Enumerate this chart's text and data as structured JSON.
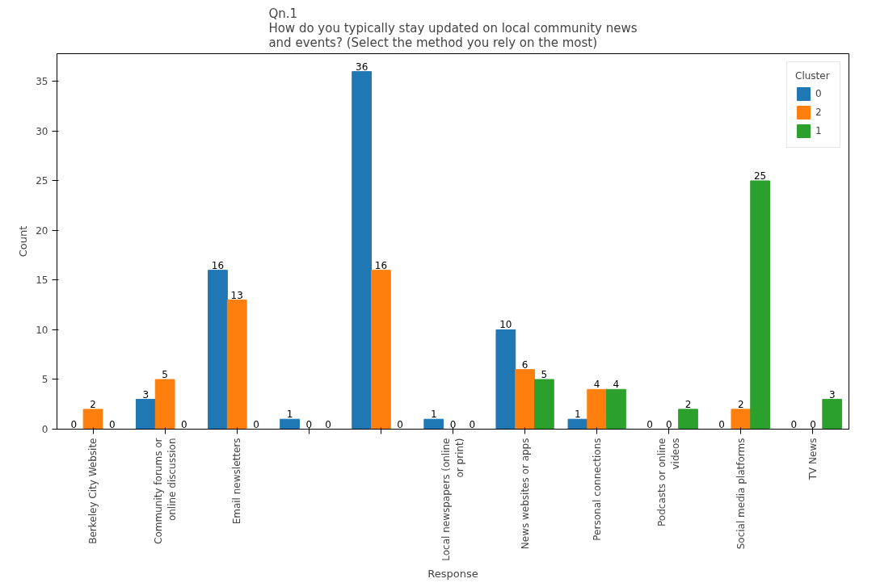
{
  "chart_data": {
    "type": "bar",
    "title": "Qn.1\nHow do you typically stay updated on local community news\nand events? (Select the method you rely on the most)",
    "xlabel": "Response",
    "ylabel": "Count",
    "legend_title": "Cluster",
    "categories": [
      "Berkeley City Website",
      "Community forums or online discussion",
      "Email newsletters",
      null,
      null,
      "Local newspapers (online or print)",
      "News websites or apps",
      "Personal connections",
      "Podcasts or online videos",
      "Social media platforms",
      "TV News"
    ],
    "series": [
      {
        "name": "0",
        "color": "#1f77b4",
        "values": [
          0,
          3,
          16,
          1,
          36,
          1,
          10,
          1,
          0,
          0,
          0
        ]
      },
      {
        "name": "2",
        "color": "#ff7f0e",
        "values": [
          2,
          5,
          13,
          0,
          16,
          0,
          6,
          4,
          0,
          2,
          0
        ]
      },
      {
        "name": "1",
        "color": "#2ca02c",
        "values": [
          0,
          0,
          0,
          0,
          0,
          0,
          5,
          4,
          2,
          25,
          3
        ]
      }
    ],
    "ylim": [
      0,
      37.8
    ],
    "yticks": [
      0,
      5,
      10,
      15,
      20,
      25,
      30,
      35
    ],
    "data_labels": true,
    "legend": "top right"
  }
}
